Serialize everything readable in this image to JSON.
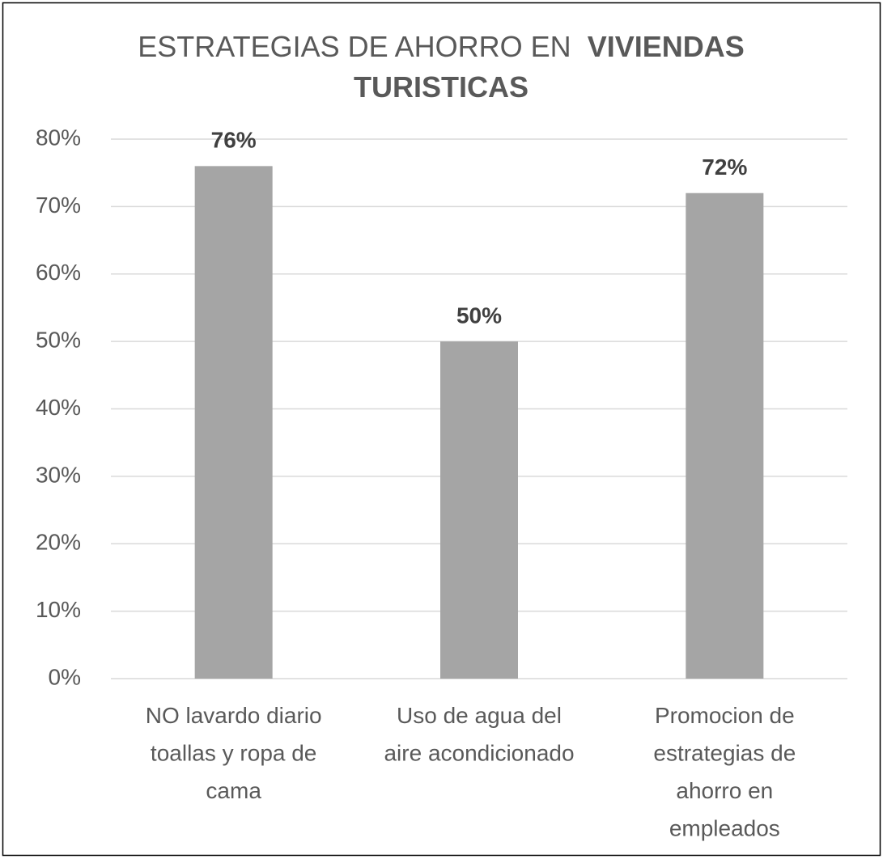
{
  "chart_data": {
    "type": "bar",
    "title": [
      "ESTRATEGIAS DE AHORRO EN",
      "VIVIENDAS",
      "TURISTICAS"
    ],
    "title_bold": [
      false,
      true,
      true
    ],
    "categories": [
      [
        "NO lavardo diario",
        "toallas y ropa de",
        "cama"
      ],
      [
        "Uso de agua del",
        "aire acondicionado"
      ],
      [
        "Promocion de",
        "estrategias de",
        "ahorro en",
        "empleados"
      ]
    ],
    "values": [
      76,
      50,
      72
    ],
    "value_labels": [
      "76%",
      "50%",
      "72%"
    ],
    "color": "#a5a5a5",
    "ylim": [
      0,
      80
    ],
    "yticks": [
      {
        "value": 0,
        "label": "0%"
      },
      {
        "value": 10,
        "label": "10%"
      },
      {
        "value": 20,
        "label": "20%"
      },
      {
        "value": 30,
        "label": "30%"
      },
      {
        "value": 40,
        "label": "40%"
      },
      {
        "value": 50,
        "label": "50%"
      },
      {
        "value": 60,
        "label": "60%"
      },
      {
        "value": 70,
        "label": "70%"
      },
      {
        "value": 80,
        "label": "80%"
      }
    ],
    "grid": true
  }
}
